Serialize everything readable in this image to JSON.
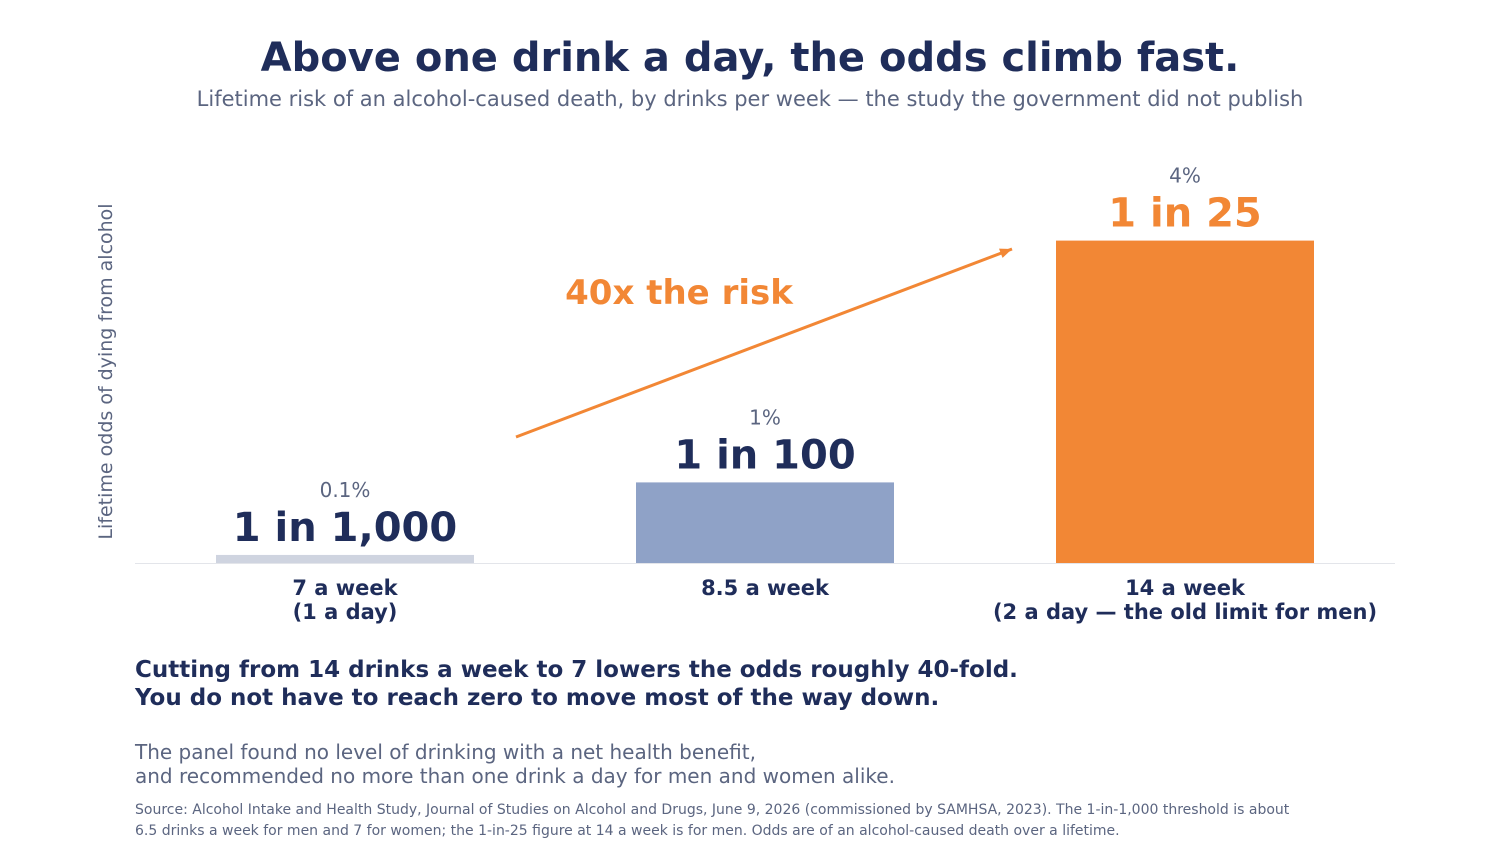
{
  "header": {
    "title": "Above one drink a day, the odds climb fast.",
    "subtitle": "Lifetime risk of an alcohol-caused death, by drinks per week — the study the government did not publish"
  },
  "chart_data": {
    "type": "bar",
    "ylabel": "Lifetime odds of dying from alcohol",
    "categories": [
      [
        "7 a week",
        "(1 a day)"
      ],
      [
        "8.5 a week"
      ],
      [
        "14 a week",
        "(2 a day — the old limit for men)"
      ]
    ],
    "values": [
      0.1,
      1,
      4
    ],
    "unit": "%",
    "percent_labels": [
      "0.1%",
      "1%",
      "4%"
    ],
    "odds_labels": [
      "1 in 1,000",
      "1 in 100",
      "1 in 25"
    ],
    "ylim": [
      0,
      5
    ],
    "grid": false,
    "annotation": {
      "text": "40x the risk",
      "arrow_from_category": 0,
      "arrow_to_category": 2
    },
    "colors": {
      "bars": [
        "#cfd4e0",
        "#8fa2c7",
        "#f28735"
      ],
      "odds_labels": [
        "#1f2d5a",
        "#1f2d5a",
        "#f28735"
      ],
      "annotation": "#f28735",
      "text_dark": "#1f2d5a",
      "text_muted": "#5b6580"
    }
  },
  "takeaway": {
    "line1": "Cutting from 14 drinks a week to 7 lowers the odds roughly 40-fold.",
    "line2": "You do not have to reach zero to move most of the way down."
  },
  "note": {
    "line1": "The panel found no level of drinking with a net health benefit,",
    "line2": "and recommended no more than one drink a day for men and women alike."
  },
  "source": {
    "line1": "Source: Alcohol Intake and Health Study, Journal of Studies on Alcohol and Drugs, June 9, 2026 (commissioned by SAMHSA, 2023). The 1-in-1,000 threshold is about",
    "line2": "6.5 drinks a week for men and 7 for women; the 1-in-25 figure at 14 a week is for men. Odds are of an alcohol-caused death over a lifetime."
  }
}
